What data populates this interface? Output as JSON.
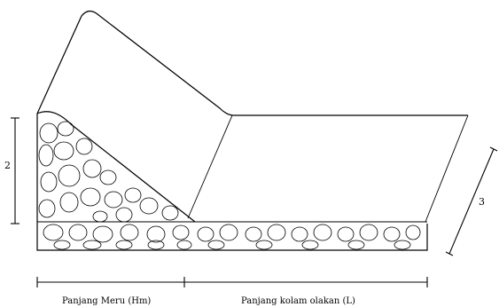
{
  "labels": {
    "height_marker": "2",
    "width_marker": "3",
    "bottom_left": "Panjang Meru (Hm)",
    "bottom_right": "Panjang kolam olakan (L)"
  }
}
